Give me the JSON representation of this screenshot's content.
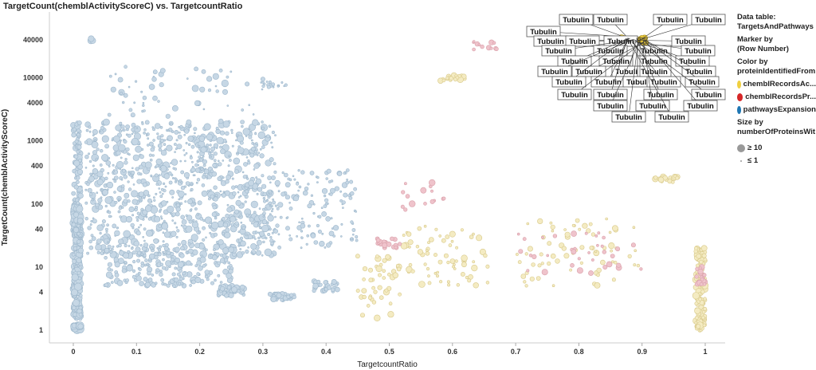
{
  "chart_data": {
    "type": "scatter",
    "title": "TargetCount(chemblActivityScoreC) vs. TargetcountRatio",
    "xlabel": "TargetcountRatio",
    "ylabel": "TargetCount(chemblActivityScoreC)",
    "xlim": [
      -0.04,
      1.03
    ],
    "ylim": [
      0.8,
      70000
    ],
    "yscale": "log",
    "xticks": [
      "0",
      "0.1",
      "0.2",
      "0.3",
      "0.4",
      "0.5",
      "0.6",
      "0.7",
      "0.8",
      "0.9",
      "1"
    ],
    "xtick_values": [
      0,
      0.1,
      0.2,
      0.3,
      0.4,
      0.5,
      0.6,
      0.7,
      0.8,
      0.9,
      1
    ],
    "yticks": [
      "1",
      "4",
      "10",
      "40",
      "100",
      "400",
      "1000",
      "4000",
      "10000",
      "40000"
    ],
    "ytick_values": [
      1,
      4,
      10,
      40,
      100,
      400,
      1000,
      4000,
      10000,
      40000
    ],
    "grid": false,
    "legend_placement": "right",
    "colors": {
      "chemblRecordsAc": "#f0d040",
      "chemblRecordsPr": "#d62728",
      "pathwaysExpansion": "#1f77b4"
    },
    "faded_colors": {
      "chemblRecordsAc": "#f4ebc2",
      "chemblRecordsPr": "#efc3cb",
      "pathwaysExpansion": "#c6d7e5"
    },
    "point_groups": [
      {
        "category": "pathwaysExpansion",
        "x": [
          0,
          0.012
        ],
        "y": [
          1,
          1.2
        ],
        "n": 50,
        "size": [
          3,
          5
        ]
      },
      {
        "category": "pathwaysExpansion",
        "x": [
          0,
          0.012
        ],
        "y": [
          1.5,
          100
        ],
        "n": 300,
        "size": [
          2,
          5
        ]
      },
      {
        "category": "pathwaysExpansion",
        "x": [
          0,
          0.012
        ],
        "y": [
          100,
          2000
        ],
        "n": 70,
        "size": [
          2,
          4
        ]
      },
      {
        "category": "pathwaysExpansion",
        "x": [
          0.02,
          0.32
        ],
        "y": [
          15,
          2000
        ],
        "n": 1000,
        "size": [
          1,
          4.5
        ]
      },
      {
        "category": "pathwaysExpansion",
        "x": [
          0.05,
          0.25
        ],
        "y": [
          5,
          20
        ],
        "n": 200,
        "size": [
          1.5,
          4
        ]
      },
      {
        "category": "pathwaysExpansion",
        "x": [
          0.23,
          0.27
        ],
        "y": [
          3.5,
          5
        ],
        "n": 50,
        "size": [
          2,
          4
        ]
      },
      {
        "category": "pathwaysExpansion",
        "x": [
          0.31,
          0.35
        ],
        "y": [
          3,
          3.8
        ],
        "n": 40,
        "size": [
          2,
          3.5
        ]
      },
      {
        "category": "pathwaysExpansion",
        "x": [
          0.38,
          0.42
        ],
        "y": [
          4,
          6
        ],
        "n": 30,
        "size": [
          2,
          3.5
        ]
      },
      {
        "category": "pathwaysExpansion",
        "x": [
          0.3,
          0.45
        ],
        "y": [
          20,
          350
        ],
        "n": 150,
        "size": [
          1,
          3.5
        ]
      },
      {
        "category": "pathwaysExpansion",
        "x": [
          0.05,
          0.3
        ],
        "y": [
          2000,
          15000
        ],
        "n": 60,
        "size": [
          1,
          4.5
        ]
      },
      {
        "category": "pathwaysExpansion",
        "x": [
          0.3,
          0.34
        ],
        "y": [
          7000,
          9000
        ],
        "n": 15,
        "size": [
          1,
          2.5
        ]
      },
      {
        "category": "pathwaysExpansion",
        "x": [
          0.025,
          0.035
        ],
        "y": [
          38000,
          42000
        ],
        "n": 3,
        "size": [
          3.5,
          4
        ]
      },
      {
        "category": "chemblRecordsAc",
        "x": [
          0.45,
          0.52
        ],
        "y": [
          1.5,
          15
        ],
        "n": 45,
        "size": [
          2,
          4
        ]
      },
      {
        "category": "chemblRecordsAc",
        "x": [
          0.52,
          0.66
        ],
        "y": [
          5,
          45
        ],
        "n": 70,
        "size": [
          1.5,
          4
        ]
      },
      {
        "category": "chemblRecordsAc",
        "x": [
          0.58,
          0.62
        ],
        "y": [
          9000,
          11000
        ],
        "n": 20,
        "size": [
          2,
          4
        ]
      },
      {
        "category": "chemblRecordsAc",
        "x": [
          0.7,
          0.9
        ],
        "y": [
          5,
          60
        ],
        "n": 70,
        "size": [
          1.5,
          4
        ]
      },
      {
        "category": "chemblRecordsAc",
        "x": [
          0.985,
          1.0
        ],
        "y": [
          1,
          20
        ],
        "n": 130,
        "size": [
          2,
          4.5
        ]
      },
      {
        "category": "chemblRecordsAc",
        "x": [
          0.92,
          0.96
        ],
        "y": [
          220,
          280
        ],
        "n": 20,
        "size": [
          2,
          4
        ]
      },
      {
        "category": "chemblRecordsAc",
        "x": [
          0.86,
          0.91
        ],
        "y": [
          36000,
          44000
        ],
        "n": 30,
        "size": [
          3,
          4
        ],
        "marked": true
      },
      {
        "category": "chemblRecordsPr",
        "x": [
          0.48,
          0.52
        ],
        "y": [
          20,
          30
        ],
        "n": 20,
        "size": [
          2,
          3.5
        ]
      },
      {
        "category": "chemblRecordsPr",
        "x": [
          0.52,
          0.6
        ],
        "y": [
          80,
          220
        ],
        "n": 15,
        "size": [
          1.5,
          4
        ]
      },
      {
        "category": "chemblRecordsPr",
        "x": [
          0.63,
          0.67
        ],
        "y": [
          28000,
          38000
        ],
        "n": 12,
        "size": [
          1.5,
          3.5
        ]
      },
      {
        "category": "chemblRecordsPr",
        "x": [
          0.7,
          0.9
        ],
        "y": [
          8,
          35
        ],
        "n": 35,
        "size": [
          1.5,
          4
        ]
      },
      {
        "category": "chemblRecordsPr",
        "x": [
          0.985,
          1.0
        ],
        "y": [
          5,
          10
        ],
        "n": 20,
        "size": [
          2,
          4
        ]
      }
    ],
    "point_labels": [
      "Tubulin",
      "Tubulin",
      "Tubulin",
      "Tubulin",
      "Tubulin",
      "Tubulin",
      "Tubulin",
      "Tubulin",
      "Tubulin",
      "Tubulin",
      "Tubulin",
      "Tubulin",
      "Tubulin",
      "Tubulin",
      "Tubulin",
      "Tubulin",
      "Tubulin",
      "Tubulin",
      "Tubulin",
      "Tubulin",
      "Tubulin",
      "Tubulin",
      "Tubulin",
      "Tubulin",
      "Tubulin",
      "Tubulin",
      "Tubulin",
      "Tubulin",
      "Tubulin",
      "Tubulin",
      "Tubulin",
      "Tubulin",
      "Tubulin",
      "Tubulin",
      "Tubulin",
      "Tubulin"
    ]
  },
  "legend": {
    "data_table_label": "Data table:",
    "data_table": "TargetsAndPathways",
    "marker_by_label": "Marker by",
    "marker_by": "(Row Number)",
    "color_by_label": "Color by",
    "color_by": "proteinIdentifiedFrom",
    "items": [
      {
        "label": "chemblRecordsAc...",
        "color": "#f0d040"
      },
      {
        "label": "chemblRecordsPr...",
        "color": "#d62728"
      },
      {
        "label": "pathwaysExpansion",
        "color": "#1f77b4"
      }
    ],
    "size_by_label": "Size by",
    "size_by": "numberOfProteinsWit",
    "size_max": "≥ 10",
    "size_min": "≤ 1"
  }
}
